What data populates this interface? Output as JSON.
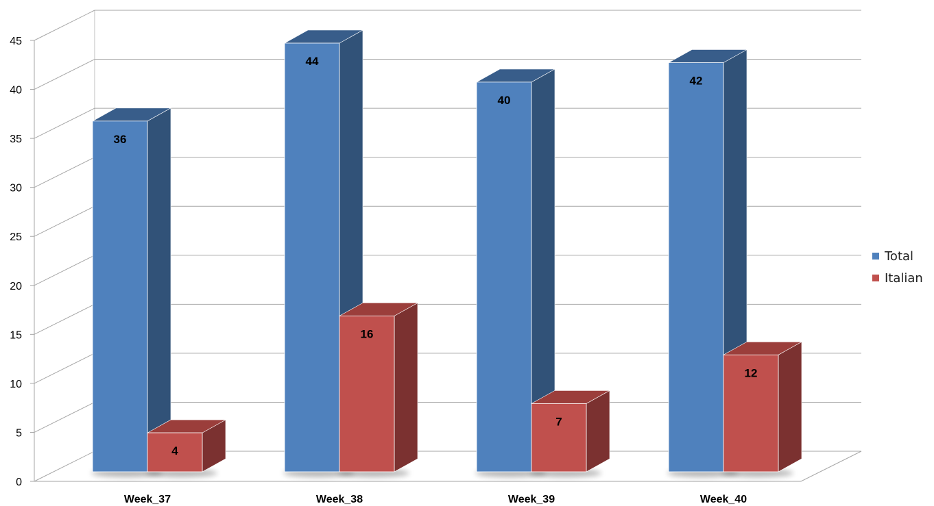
{
  "chart_data": {
    "type": "bar",
    "categories": [
      "Week_37",
      "Week_38",
      "Week_39",
      "Week_40"
    ],
    "series": [
      {
        "name": "Total",
        "values": [
          36,
          44,
          40,
          42
        ],
        "color": "#4F81BD",
        "side_color": "#315278",
        "top_color": "#385D8A"
      },
      {
        "name": "Italian",
        "values": [
          4,
          16,
          7,
          12
        ],
        "color": "#C0504D",
        "side_color": "#7B3130",
        "top_color": "#9B3E3B"
      }
    ],
    "ylim": [
      0,
      45
    ],
    "yticks": [
      "0",
      "5",
      "10",
      "15",
      "20",
      "25",
      "30",
      "35",
      "40",
      "45"
    ],
    "grid": true,
    "legend_position": "right",
    "data_labels": true
  }
}
